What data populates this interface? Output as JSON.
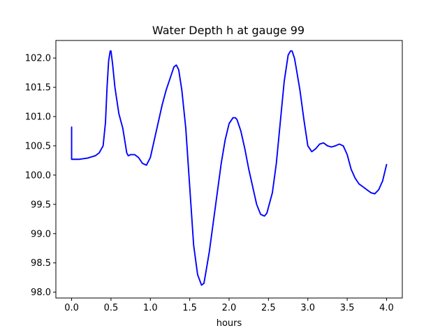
{
  "chart_data": {
    "type": "line",
    "title": "Water Depth h at gauge 99",
    "xlabel": "hours",
    "ylabel": "",
    "xlim": [
      -0.2,
      4.2
    ],
    "ylim": [
      97.9,
      102.3
    ],
    "grid": false,
    "legend": "none",
    "x_ticks": [
      0.0,
      0.5,
      1.0,
      1.5,
      2.0,
      2.5,
      3.0,
      3.5,
      4.0
    ],
    "x_tick_labels": [
      "0.0",
      "0.5",
      "1.0",
      "1.5",
      "2.0",
      "2.5",
      "3.0",
      "3.5",
      "4.0"
    ],
    "y_ticks": [
      98.0,
      98.5,
      99.0,
      99.5,
      100.0,
      100.5,
      101.0,
      101.5,
      102.0
    ],
    "y_tick_labels": [
      "98.0",
      "98.5",
      "99.0",
      "99.5",
      "100.0",
      "100.5",
      "101.0",
      "101.5",
      "102.0"
    ],
    "series": [
      {
        "color": "#0000ff",
        "x": [
          0.0,
          0.0,
          0.05,
          0.1,
          0.2,
          0.3,
          0.35,
          0.4,
          0.43,
          0.45,
          0.47,
          0.49,
          0.5,
          0.52,
          0.55,
          0.6,
          0.65,
          0.68,
          0.7,
          0.72,
          0.75,
          0.8,
          0.85,
          0.9,
          0.95,
          1.0,
          1.05,
          1.1,
          1.15,
          1.2,
          1.25,
          1.3,
          1.33,
          1.36,
          1.4,
          1.45,
          1.5,
          1.55,
          1.6,
          1.65,
          1.68,
          1.7,
          1.75,
          1.8,
          1.85,
          1.9,
          1.95,
          2.0,
          2.05,
          2.08,
          2.1,
          2.15,
          2.2,
          2.25,
          2.3,
          2.35,
          2.4,
          2.45,
          2.48,
          2.5,
          2.55,
          2.6,
          2.65,
          2.7,
          2.75,
          2.78,
          2.8,
          2.83,
          2.85,
          2.9,
          2.95,
          3.0,
          3.05,
          3.1,
          3.15,
          3.2,
          3.25,
          3.3,
          3.35,
          3.4,
          3.45,
          3.5,
          3.55,
          3.6,
          3.65,
          3.7,
          3.75,
          3.8,
          3.85,
          3.9,
          3.95,
          4.0
        ],
        "y": [
          100.82,
          100.27,
          100.27,
          100.27,
          100.29,
          100.33,
          100.38,
          100.5,
          100.9,
          101.5,
          101.95,
          102.12,
          102.12,
          101.9,
          101.5,
          101.05,
          100.8,
          100.55,
          100.38,
          100.33,
          100.35,
          100.35,
          100.3,
          100.2,
          100.17,
          100.3,
          100.6,
          100.9,
          101.2,
          101.45,
          101.65,
          101.85,
          101.88,
          101.8,
          101.45,
          100.8,
          99.8,
          98.8,
          98.3,
          98.12,
          98.15,
          98.3,
          98.7,
          99.2,
          99.7,
          100.2,
          100.6,
          100.88,
          100.98,
          100.98,
          100.95,
          100.75,
          100.45,
          100.1,
          99.8,
          99.5,
          99.33,
          99.3,
          99.35,
          99.45,
          99.7,
          100.2,
          100.9,
          101.6,
          102.05,
          102.12,
          102.12,
          102.0,
          101.85,
          101.45,
          100.95,
          100.5,
          100.4,
          100.45,
          100.53,
          100.55,
          100.5,
          100.48,
          100.5,
          100.53,
          100.5,
          100.35,
          100.1,
          99.95,
          99.85,
          99.8,
          99.75,
          99.7,
          99.68,
          99.75,
          99.9,
          100.18
        ]
      }
    ]
  }
}
